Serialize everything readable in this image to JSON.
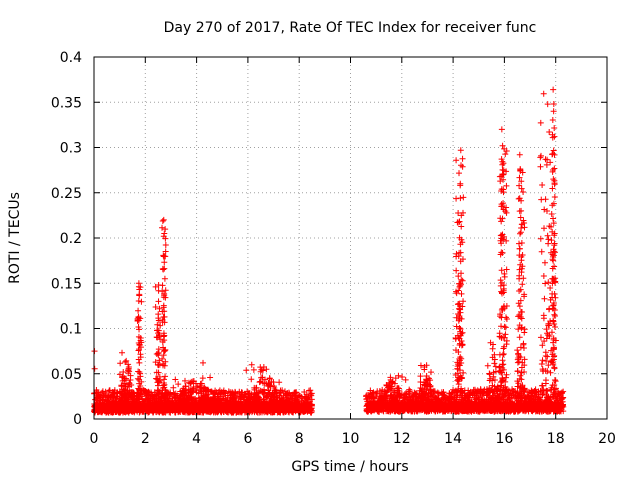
{
  "chart_data": {
    "type": "scatter",
    "title": "Day 270 of 2017, Rate Of TEC Index for receiver func",
    "xlabel": "GPS time / hours",
    "ylabel": "ROTI / TECUs",
    "xlim": [
      0,
      20
    ],
    "ylim": [
      0,
      0.4
    ],
    "xticks": [
      0,
      2,
      4,
      6,
      8,
      10,
      12,
      14,
      16,
      18,
      20
    ],
    "yticks": [
      0,
      0.05,
      0.1,
      0.15,
      0.2,
      0.25,
      0.3,
      0.35,
      0.4
    ],
    "xtick_labels": [
      "0",
      "2",
      "4",
      "6",
      "8",
      "10",
      "12",
      "14",
      "16",
      "18",
      "20"
    ],
    "ytick_labels": [
      "0",
      "0.05",
      "0.1",
      "0.15",
      "0.2",
      "0.25",
      "0.3",
      "0.35",
      "0.4"
    ],
    "grid": true,
    "marker": "+",
    "color": "#ff0000",
    "baseline_segments": [
      {
        "start": 0.0,
        "end": 8.5,
        "base": 0.012
      },
      {
        "start": 10.6,
        "end": 18.3,
        "base": 0.013
      }
    ],
    "elevated_regions": [
      {
        "start": 1.0,
        "end": 1.5,
        "max": 0.078
      },
      {
        "start": 1.7,
        "end": 1.85,
        "max": 0.15
      },
      {
        "start": 2.4,
        "end": 2.6,
        "max": 0.15
      },
      {
        "start": 2.65,
        "end": 2.8,
        "max": 0.22
      },
      {
        "start": 3.0,
        "end": 4.8,
        "max": 0.05
      },
      {
        "start": 5.9,
        "end": 7.3,
        "max": 0.06
      },
      {
        "start": 11.0,
        "end": 12.2,
        "max": 0.05
      },
      {
        "start": 12.7,
        "end": 13.2,
        "max": 0.065
      },
      {
        "start": 14.1,
        "end": 14.4,
        "max": 0.297
      },
      {
        "start": 15.3,
        "end": 15.8,
        "max": 0.085
      },
      {
        "start": 15.8,
        "end": 16.1,
        "max": 0.32
      },
      {
        "start": 16.5,
        "end": 16.8,
        "max": 0.292
      },
      {
        "start": 17.4,
        "end": 18.0,
        "max": 0.364
      }
    ],
    "peaks": [
      {
        "x": 0.02,
        "y": 0.075
      },
      {
        "x": 1.75,
        "y": 0.15
      },
      {
        "x": 2.52,
        "y": 0.148
      },
      {
        "x": 2.72,
        "y": 0.22
      },
      {
        "x": 2.74,
        "y": 0.205
      },
      {
        "x": 4.25,
        "y": 0.062
      },
      {
        "x": 6.15,
        "y": 0.06
      },
      {
        "x": 6.72,
        "y": 0.055
      },
      {
        "x": 14.3,
        "y": 0.297
      },
      {
        "x": 14.28,
        "y": 0.26
      },
      {
        "x": 14.25,
        "y": 0.218
      },
      {
        "x": 14.22,
        "y": 0.18
      },
      {
        "x": 14.2,
        "y": 0.142
      },
      {
        "x": 15.9,
        "y": 0.32
      },
      {
        "x": 15.93,
        "y": 0.302
      },
      {
        "x": 15.95,
        "y": 0.27
      },
      {
        "x": 15.88,
        "y": 0.235
      },
      {
        "x": 16.6,
        "y": 0.292
      },
      {
        "x": 16.62,
        "y": 0.275
      },
      {
        "x": 16.65,
        "y": 0.23
      },
      {
        "x": 16.68,
        "y": 0.215
      },
      {
        "x": 17.9,
        "y": 0.364
      },
      {
        "x": 17.92,
        "y": 0.34
      },
      {
        "x": 17.95,
        "y": 0.312
      },
      {
        "x": 17.88,
        "y": 0.273
      },
      {
        "x": 17.93,
        "y": 0.238
      },
      {
        "x": 17.96,
        "y": 0.205
      },
      {
        "x": 17.9,
        "y": 0.175
      },
      {
        "x": 17.98,
        "y": 0.152
      }
    ]
  }
}
